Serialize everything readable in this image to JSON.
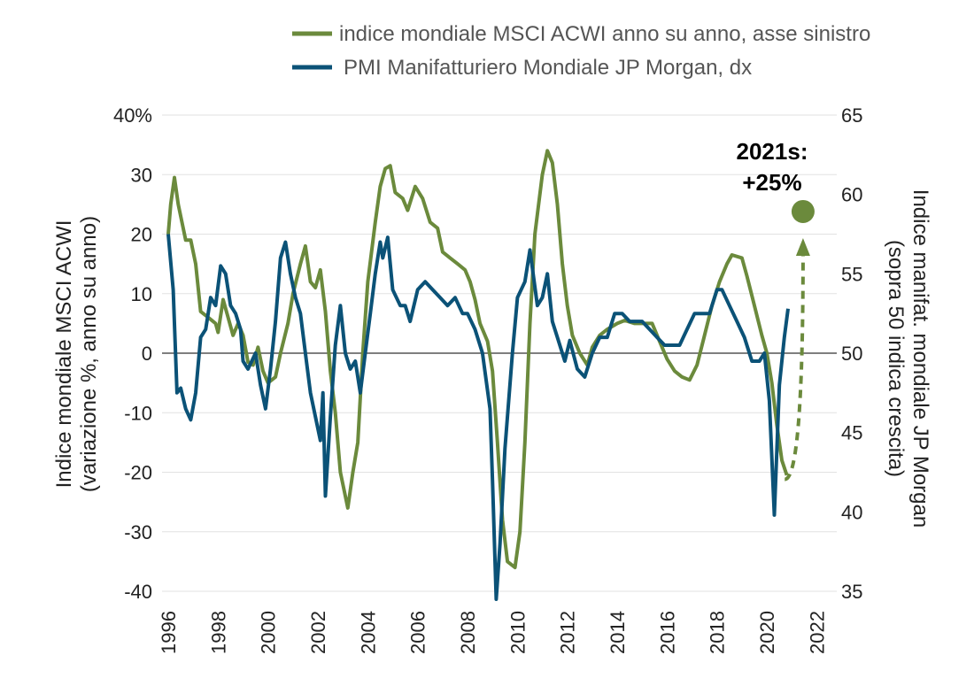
{
  "chart_data": {
    "type": "line",
    "title": "",
    "xlim": [
      1996,
      2022
    ],
    "x_ticks": [
      "1996",
      "1998",
      "2000",
      "2002",
      "2004",
      "2006",
      "2008",
      "2010",
      "2012",
      "2014",
      "2016",
      "2018",
      "2020",
      "2022"
    ],
    "y_left": {
      "label_line1": "Indice mondiale MSCI ACWI",
      "label_line2": "(variazione %, anno su anno)",
      "ylim": [
        -40,
        40
      ],
      "ticks": [
        "40%",
        "30",
        "20",
        "10",
        "0",
        "-10",
        "-20",
        "-30",
        "-40"
      ]
    },
    "y_right": {
      "label_line1": "Indice manifat. mondiale JP Morgan",
      "label_line2": "(sopra 50 indica crescita)",
      "ylim": [
        35,
        65
      ],
      "ticks": [
        "65",
        "60",
        "55",
        "50",
        "45",
        "40",
        "35"
      ]
    },
    "grid": true,
    "legend_placement": "top",
    "series": [
      {
        "name": "indice mondiale MSCI ACWI anno su anno, asse sinistro",
        "axis": "left",
        "color": "#6b8a3c",
        "points": [
          [
            1996.0,
            20
          ],
          [
            1996.1,
            25
          ],
          [
            1996.25,
            29.5
          ],
          [
            1996.4,
            25
          ],
          [
            1996.7,
            19
          ],
          [
            1996.9,
            19
          ],
          [
            1997.1,
            15
          ],
          [
            1997.3,
            7
          ],
          [
            1997.6,
            6
          ],
          [
            1997.9,
            5
          ],
          [
            1998.0,
            3.5
          ],
          [
            1998.2,
            9
          ],
          [
            1998.4,
            6
          ],
          [
            1998.6,
            3
          ],
          [
            1998.8,
            5
          ],
          [
            1999.0,
            3
          ],
          [
            1999.2,
            -1.5
          ],
          [
            1999.4,
            -2
          ],
          [
            1999.6,
            1
          ],
          [
            1999.8,
            -3
          ],
          [
            2000.0,
            -5
          ],
          [
            2000.3,
            -4
          ],
          [
            2000.5,
            0
          ],
          [
            2000.8,
            5
          ],
          [
            2001.0,
            10
          ],
          [
            2001.3,
            15
          ],
          [
            2001.5,
            18
          ],
          [
            2001.7,
            12
          ],
          [
            2001.9,
            11
          ],
          [
            2002.1,
            14
          ],
          [
            2002.3,
            7
          ],
          [
            2002.5,
            -3
          ],
          [
            2002.7,
            -10
          ],
          [
            2002.9,
            -20
          ],
          [
            2003.2,
            -26
          ],
          [
            2003.4,
            -20
          ],
          [
            2003.6,
            -15
          ],
          [
            2003.8,
            0
          ],
          [
            2004.0,
            12
          ],
          [
            2004.3,
            22
          ],
          [
            2004.5,
            28
          ],
          [
            2004.7,
            31
          ],
          [
            2004.9,
            31.5
          ],
          [
            2005.1,
            27
          ],
          [
            2005.4,
            26
          ],
          [
            2005.6,
            24
          ],
          [
            2005.9,
            28
          ],
          [
            2006.2,
            26
          ],
          [
            2006.5,
            22
          ],
          [
            2006.8,
            21
          ],
          [
            2007.0,
            17
          ],
          [
            2007.3,
            16
          ],
          [
            2007.6,
            15
          ],
          [
            2007.9,
            14
          ],
          [
            2008.1,
            12
          ],
          [
            2008.3,
            9
          ],
          [
            2008.5,
            5
          ],
          [
            2008.8,
            2
          ],
          [
            2009.0,
            -3
          ],
          [
            2009.2,
            -15
          ],
          [
            2009.4,
            -28
          ],
          [
            2009.6,
            -35
          ],
          [
            2009.9,
            -36
          ],
          [
            2010.1,
            -30
          ],
          [
            2010.3,
            -15
          ],
          [
            2010.5,
            5
          ],
          [
            2010.7,
            20
          ],
          [
            2011.0,
            30
          ],
          [
            2011.2,
            34
          ],
          [
            2011.4,
            32
          ],
          [
            2011.6,
            25
          ],
          [
            2011.8,
            15
          ],
          [
            2012.0,
            8
          ],
          [
            2012.2,
            3
          ],
          [
            2012.5,
            0
          ],
          [
            2012.8,
            -2
          ],
          [
            2013.0,
            1
          ],
          [
            2013.3,
            3
          ],
          [
            2013.6,
            4
          ],
          [
            2014.0,
            5
          ],
          [
            2014.3,
            5.5
          ],
          [
            2014.7,
            5
          ],
          [
            2015.0,
            5
          ],
          [
            2015.4,
            5
          ],
          [
            2015.7,
            2
          ],
          [
            2016.0,
            -1
          ],
          [
            2016.3,
            -3
          ],
          [
            2016.6,
            -4
          ],
          [
            2016.9,
            -4.5
          ],
          [
            2017.2,
            -2
          ],
          [
            2017.5,
            3
          ],
          [
            2017.8,
            8
          ],
          [
            2018.1,
            12
          ],
          [
            2018.4,
            15
          ],
          [
            2018.6,
            16.5
          ],
          [
            2019.0,
            16
          ],
          [
            2019.2,
            13
          ],
          [
            2019.5,
            8
          ],
          [
            2019.8,
            3
          ],
          [
            2020.0,
            0
          ],
          [
            2020.2,
            -5
          ],
          [
            2020.4,
            -12
          ],
          [
            2020.6,
            -18
          ],
          [
            2020.8,
            -20.5
          ]
        ]
      },
      {
        "name": "PMI Manifatturiero Mondiale JP Morgan, dx",
        "axis": "right",
        "color": "#0b5277",
        "points": [
          [
            1996.0,
            57.5
          ],
          [
            1996.2,
            54
          ],
          [
            1996.35,
            47.5
          ],
          [
            1996.5,
            47.8
          ],
          [
            1996.7,
            46.5
          ],
          [
            1996.9,
            45.8
          ],
          [
            1997.1,
            47.5
          ],
          [
            1997.3,
            51
          ],
          [
            1997.5,
            51.5
          ],
          [
            1997.7,
            53.5
          ],
          [
            1997.9,
            53
          ],
          [
            1998.1,
            55.5
          ],
          [
            1998.3,
            55
          ],
          [
            1998.5,
            53
          ],
          [
            1998.7,
            52.5
          ],
          [
            1998.9,
            51.5
          ],
          [
            1999.0,
            49.5
          ],
          [
            1999.2,
            49
          ],
          [
            1999.5,
            50
          ],
          [
            1999.7,
            48
          ],
          [
            1999.9,
            46.5
          ],
          [
            2000.1,
            49
          ],
          [
            2000.3,
            52
          ],
          [
            2000.5,
            56
          ],
          [
            2000.7,
            57
          ],
          [
            2000.9,
            55
          ],
          [
            2001.1,
            53.5
          ],
          [
            2001.3,
            52.5
          ],
          [
            2001.5,
            50
          ],
          [
            2001.7,
            47.5
          ],
          [
            2001.9,
            46
          ],
          [
            2002.1,
            44.5
          ],
          [
            2002.2,
            47.5
          ],
          [
            2002.3,
            41
          ],
          [
            2002.5,
            46
          ],
          [
            2002.7,
            50.5
          ],
          [
            2002.9,
            53
          ],
          [
            2003.1,
            50
          ],
          [
            2003.3,
            49
          ],
          [
            2003.5,
            49.5
          ],
          [
            2003.7,
            47.5
          ],
          [
            2003.9,
            50
          ],
          [
            2004.1,
            52.5
          ],
          [
            2004.3,
            55
          ],
          [
            2004.5,
            57
          ],
          [
            2004.6,
            56
          ],
          [
            2004.8,
            57.3
          ],
          [
            2005.0,
            54
          ],
          [
            2005.3,
            53
          ],
          [
            2005.5,
            53
          ],
          [
            2005.7,
            52
          ],
          [
            2006.0,
            54
          ],
          [
            2006.3,
            54.5
          ],
          [
            2006.6,
            54
          ],
          [
            2006.9,
            53.5
          ],
          [
            2007.2,
            53
          ],
          [
            2007.5,
            53.5
          ],
          [
            2007.8,
            52.5
          ],
          [
            2008.0,
            52.5
          ],
          [
            2008.3,
            51.5
          ],
          [
            2008.6,
            50
          ],
          [
            2008.9,
            46.5
          ],
          [
            2009.0,
            42
          ],
          [
            2009.15,
            34.5
          ],
          [
            2009.3,
            38
          ],
          [
            2009.5,
            44
          ],
          [
            2009.8,
            50
          ],
          [
            2010.0,
            53.5
          ],
          [
            2010.3,
            54.5
          ],
          [
            2010.5,
            56.5
          ],
          [
            2010.8,
            53
          ],
          [
            2011.0,
            53.5
          ],
          [
            2011.2,
            55
          ],
          [
            2011.4,
            52
          ],
          [
            2011.6,
            51
          ],
          [
            2011.9,
            49.5
          ],
          [
            2012.1,
            50.8
          ],
          [
            2012.4,
            49
          ],
          [
            2012.7,
            48.5
          ],
          [
            2013.0,
            50
          ],
          [
            2013.3,
            51
          ],
          [
            2013.6,
            51
          ],
          [
            2013.9,
            52.5
          ],
          [
            2014.2,
            52.5
          ],
          [
            2014.5,
            52
          ],
          [
            2014.8,
            52
          ],
          [
            2015.0,
            52
          ],
          [
            2015.3,
            51.5
          ],
          [
            2015.6,
            51
          ],
          [
            2015.9,
            50.5
          ],
          [
            2016.2,
            50.5
          ],
          [
            2016.5,
            50.5
          ],
          [
            2016.8,
            51.5
          ],
          [
            2017.1,
            52.5
          ],
          [
            2017.4,
            52.5
          ],
          [
            2017.7,
            52.5
          ],
          [
            2018.0,
            54
          ],
          [
            2018.2,
            54
          ],
          [
            2018.5,
            53
          ],
          [
            2018.8,
            52
          ],
          [
            2019.1,
            51
          ],
          [
            2019.4,
            49.5
          ],
          [
            2019.7,
            49.5
          ],
          [
            2019.9,
            50
          ],
          [
            2020.1,
            47
          ],
          [
            2020.3,
            39.8
          ],
          [
            2020.5,
            48
          ],
          [
            2020.7,
            51
          ],
          [
            2020.85,
            52.8
          ]
        ]
      }
    ],
    "annotation": {
      "line1": "2021s:",
      "line2": "+25%",
      "forecast_point": [
        2021.45,
        23.8
      ],
      "arrow_from": [
        2021.0,
        -21.2
      ],
      "color": "#6b8a3c"
    }
  }
}
